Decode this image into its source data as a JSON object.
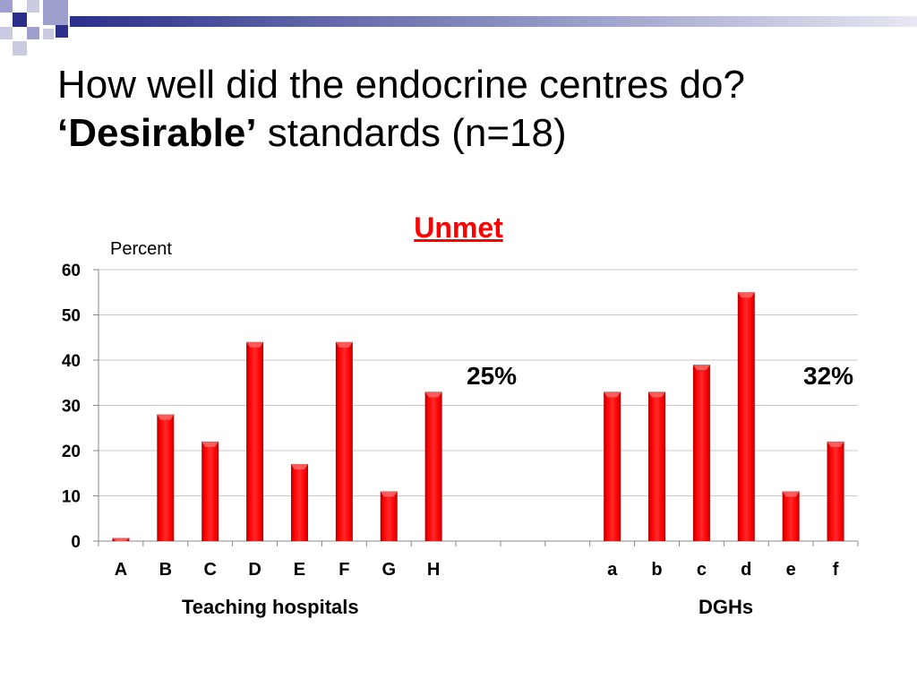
{
  "slide": {
    "title_line1": "How well did the endocrine centres do?",
    "title_line2_bold": "‘Desirable’",
    "title_line2_rest": " standards (n=18)"
  },
  "chart_data": {
    "type": "bar",
    "title": "Unmet",
    "ylabel": "Percent",
    "xlabel": "",
    "ylim": [
      0,
      60
    ],
    "yticks": [
      0,
      10,
      20,
      30,
      40,
      50,
      60
    ],
    "grid": true,
    "categories": [
      "A",
      "B",
      "C",
      "D",
      "E",
      "F",
      "G",
      "H",
      "",
      "",
      "",
      "a",
      "b",
      "c",
      "d",
      "e",
      "f"
    ],
    "values": [
      0.7,
      28,
      22,
      44,
      17,
      44,
      11,
      33,
      null,
      null,
      null,
      33,
      33,
      39,
      55,
      11,
      22
    ],
    "bar_color": "#ff0000",
    "groups": [
      {
        "label": "Teaching hospitals",
        "summary": "25%"
      },
      {
        "label": "DGHs",
        "summary": "32%"
      }
    ]
  },
  "colors": {
    "accent_dark": "#2b2f8a",
    "accent_light": "#9da0cc",
    "bar": "#ff0000"
  }
}
